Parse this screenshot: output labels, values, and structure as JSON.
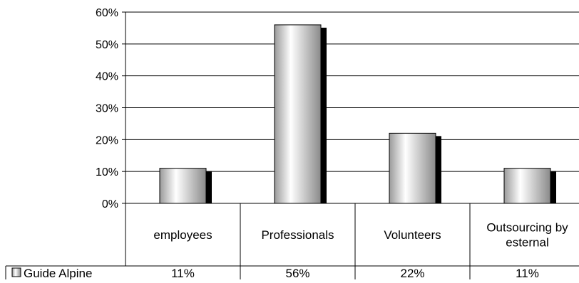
{
  "chart_data": {
    "type": "bar",
    "categories": [
      "employees",
      "Professionals",
      "Volunteers",
      "Outsourcing by esternal"
    ],
    "category_lines": [
      [
        "employees"
      ],
      [
        "Professionals"
      ],
      [
        "Volunteers"
      ],
      [
        "Outsourcing by",
        "esternal"
      ]
    ],
    "series": [
      {
        "name": "Guide Alpine",
        "values": [
          0.11,
          0.56,
          0.22,
          0.11
        ]
      }
    ],
    "data_table": {
      "series_label": "Guide Alpine",
      "cells": [
        "11%",
        "56%",
        "22%",
        "11%"
      ]
    },
    "y_ticks": [
      "0%",
      "10%",
      "20%",
      "30%",
      "40%",
      "50%",
      "60%"
    ],
    "ylim": [
      0,
      0.6
    ],
    "grid": true,
    "colors": {
      "bar_light": "#ffffff",
      "bar_mid": "#c8c8c8",
      "bar_dark": "#6e6e6e",
      "shadow": "#000000",
      "line": "#000000"
    }
  }
}
